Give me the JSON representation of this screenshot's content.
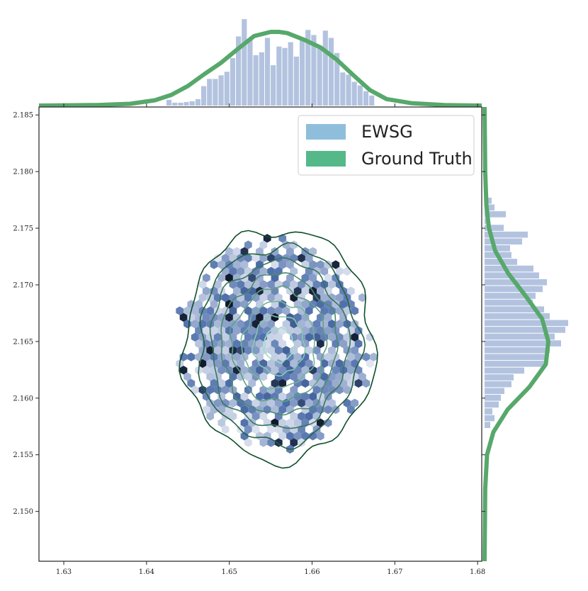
{
  "chart_data": {
    "type": "scatter",
    "subtype": "joint-hexbin-kde",
    "title": "",
    "xlabel": "",
    "ylabel": "",
    "xlim": [
      1.627,
      1.6805
    ],
    "ylim": [
      2.1456,
      2.1857
    ],
    "x_ticks": [
      "1.63",
      "1.64",
      "1.65",
      "1.66",
      "1.67",
      "1.68"
    ],
    "y_ticks": [
      "2.150",
      "2.155",
      "2.160",
      "2.165",
      "2.170",
      "2.175",
      "2.180",
      "2.185"
    ],
    "grid": false,
    "legend_position": "top-right",
    "legend": [
      {
        "label": "EWSG",
        "color": "#8fbedd"
      },
      {
        "label": "Ground Truth",
        "color": "#55b889"
      }
    ],
    "colors": {
      "hist": "#b3c3df",
      "kde_marginal": "#57a86b",
      "hex_light": "#e8ecf5",
      "hex_dark": "#0d1524",
      "contour_outer": "#0d4f2b",
      "contour_inner": "#9fdcc6"
    },
    "hexbin_center": {
      "x": 1.6555,
      "y": 2.1648
    },
    "hexbin_spread": {
      "x": 0.0058,
      "y": 0.0045
    },
    "contour_levels": 8,
    "contour_center": {
      "x": 1.656,
      "y": 2.1647
    },
    "contour_radii_x": [
      0.0115,
      0.0097,
      0.0083,
      0.007,
      0.0057,
      0.0044,
      0.0031,
      0.0018
    ],
    "contour_radii_y": [
      0.0102,
      0.0087,
      0.0074,
      0.0062,
      0.005,
      0.0038,
      0.0026,
      0.0015
    ],
    "marginal_x_hist": {
      "bins": [
        1.6424,
        1.6431,
        1.6438,
        1.6445,
        1.6452,
        1.6459,
        1.6466,
        1.6473,
        1.648,
        1.6487,
        1.6494,
        1.6501,
        1.6508,
        1.6515,
        1.6522,
        1.6529,
        1.6536,
        1.6543,
        1.655,
        1.6557,
        1.6564,
        1.6571,
        1.6578,
        1.6585,
        1.6592,
        1.6599,
        1.6606,
        1.6613,
        1.662,
        1.6627,
        1.6634,
        1.6641,
        1.6648,
        1.6655,
        1.6662,
        1.6669
      ],
      "values": [
        8,
        4,
        4,
        5,
        6,
        9,
        27,
        37,
        37,
        42,
        47,
        66,
        96,
        120,
        91,
        70,
        74,
        94,
        56,
        82,
        80,
        88,
        68,
        90,
        105,
        98,
        83,
        104,
        94,
        73,
        46,
        43,
        33,
        28,
        20,
        14
      ]
    },
    "marginal_y_hist": {
      "bins": [
        2.1573,
        2.1579,
        2.1585,
        2.1591,
        2.1597,
        2.1603,
        2.1609,
        2.1615,
        2.1621,
        2.1627,
        2.1633,
        2.1639,
        2.1645,
        2.1651,
        2.1657,
        2.1663,
        2.1669,
        2.1675,
        2.1681,
        2.1687,
        2.1693,
        2.1699,
        2.1705,
        2.1711,
        2.1717,
        2.1723,
        2.1729,
        2.1735,
        2.1741,
        2.1747,
        2.1753,
        2.1759,
        2.1765,
        2.1771
      ],
      "values": [
        8,
        14,
        11,
        20,
        23,
        28,
        38,
        41,
        56,
        88,
        89,
        92,
        108,
        99,
        114,
        118,
        92,
        84,
        68,
        72,
        82,
        88,
        77,
        69,
        46,
        38,
        36,
        53,
        61,
        27,
        4,
        30,
        14,
        10
      ]
    },
    "marginal_x_kde": {
      "x": [
        1.627,
        1.634,
        1.638,
        1.641,
        1.643,
        1.645,
        1.647,
        1.649,
        1.651,
        1.653,
        1.655,
        1.656,
        1.657,
        1.659,
        1.661,
        1.663,
        1.665,
        1.667,
        1.669,
        1.672,
        1.676,
        1.6805
      ],
      "y": [
        0,
        1,
        3,
        9,
        18,
        33,
        53,
        72,
        95,
        117,
        124,
        124,
        122,
        111,
        98,
        77,
        51,
        26,
        11,
        4,
        1,
        0
      ]
    },
    "marginal_y_kde": {
      "y": [
        2.1456,
        2.152,
        2.155,
        2.157,
        2.159,
        2.161,
        2.163,
        2.165,
        2.167,
        2.169,
        2.171,
        2.173,
        2.175,
        2.177,
        2.18,
        2.1857
      ],
      "x": [
        0,
        1,
        4,
        14,
        37,
        72,
        98,
        102,
        92,
        66,
        38,
        17,
        7,
        3,
        1,
        0
      ]
    }
  }
}
